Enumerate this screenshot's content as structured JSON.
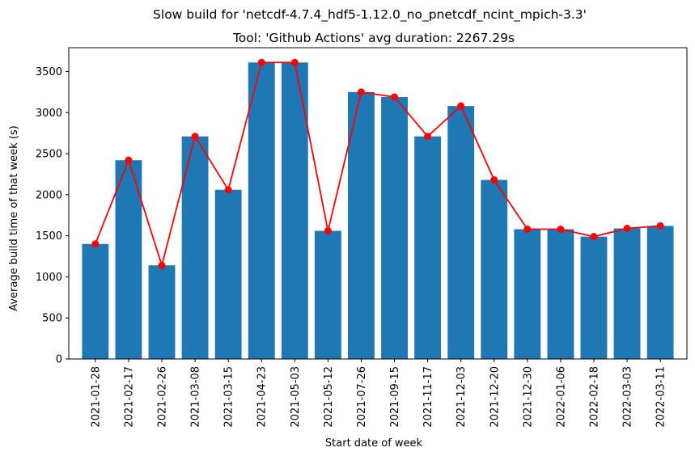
{
  "chart_data": {
    "type": "bar",
    "suptitle": "Slow build for 'netcdf-4.7.4_hdf5-1.12.0_no_pnetcdf_ncint_mpich-3.3'",
    "title": "Tool: 'Github Actions' avg duration: 2267.29s",
    "xlabel": "Start date of week",
    "ylabel": "Average build time of that week (s)",
    "categories": [
      "2021-01-28",
      "2021-02-17",
      "2021-02-26",
      "2021-03-08",
      "2021-03-15",
      "2021-04-23",
      "2021-05-03",
      "2021-05-12",
      "2021-07-26",
      "2021-09-15",
      "2021-11-17",
      "2021-12-03",
      "2021-12-20",
      "2021-12-30",
      "2022-01-06",
      "2022-02-18",
      "2022-03-03",
      "2022-03-11"
    ],
    "series": [
      {
        "type": "bar",
        "color": "#1f77b4",
        "values": [
          1400,
          2420,
          1140,
          2710,
          2060,
          3610,
          3610,
          1560,
          3250,
          3190,
          2710,
          3080,
          2180,
          1580,
          1580,
          1490,
          1590,
          1620
        ]
      },
      {
        "type": "line",
        "color": "#ff0000",
        "marker": "circle",
        "values": [
          1400,
          2420,
          1140,
          2710,
          2060,
          3610,
          3610,
          1560,
          3250,
          3190,
          2710,
          3080,
          2180,
          1580,
          1580,
          1490,
          1590,
          1620
        ]
      }
    ],
    "yticks": [
      0,
      500,
      1000,
      1500,
      2000,
      2500,
      3000,
      3500
    ],
    "ylim": [
      0,
      3790
    ],
    "grid": false,
    "legend": "none"
  }
}
